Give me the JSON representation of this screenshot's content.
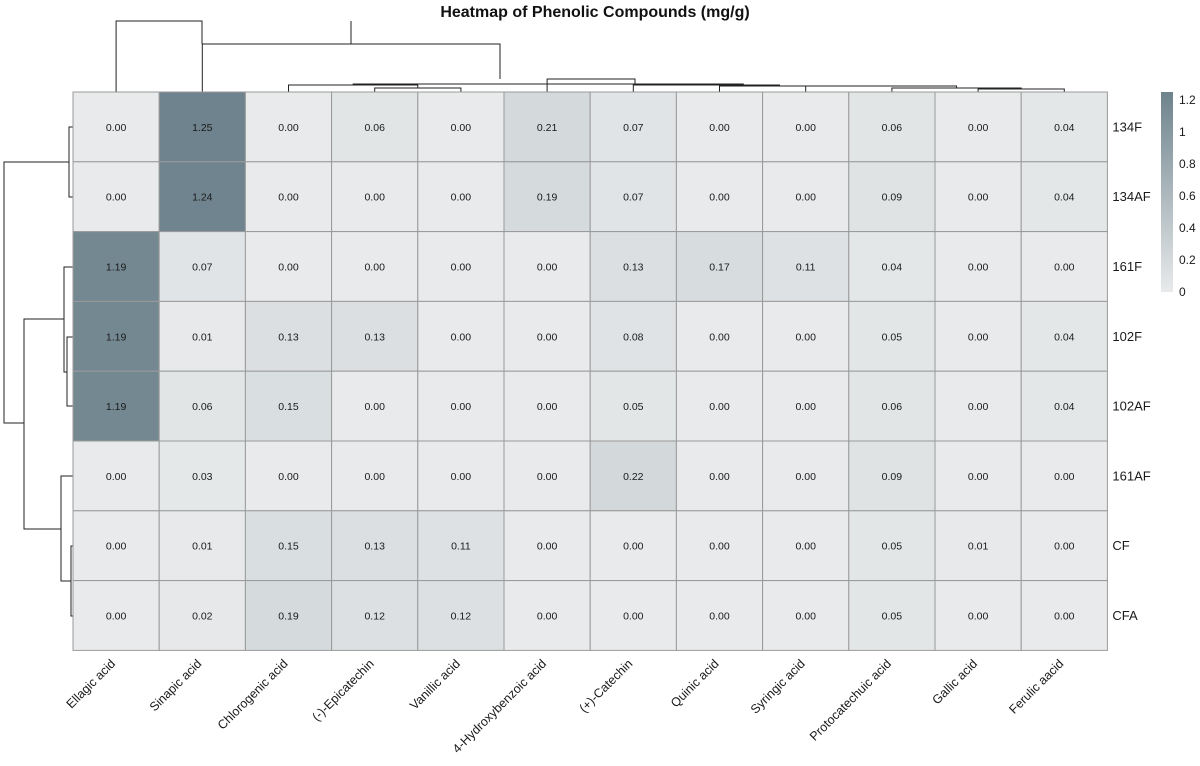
{
  "chart_data": {
    "type": "heatmap",
    "title": "Heatmap of Phenolic Compounds (mg/g)",
    "columns": [
      "Ellagic acid",
      "Sinapic acid",
      "Chlorogenic acid",
      "(-)-Epicatechin",
      "Vanillic acid",
      "4-Hydroxybenzoic acid",
      "(+)-Catechin",
      "Quinic acid",
      "Syringic acid",
      "Protocatechuic acid",
      "Gallic acid",
      "Ferulic aacid"
    ],
    "rows": [
      "134F",
      "134AF",
      "161F",
      "102F",
      "102AF",
      "161AF",
      "CF",
      "CFA"
    ],
    "values": [
      [
        0.0,
        1.25,
        0.0,
        0.06,
        0.0,
        0.21,
        0.07,
        0.0,
        0.0,
        0.06,
        0.0,
        0.04
      ],
      [
        0.0,
        1.24,
        0.0,
        0.0,
        0.0,
        0.19,
        0.07,
        0.0,
        0.0,
        0.09,
        0.0,
        0.04
      ],
      [
        1.19,
        0.07,
        0.0,
        0.0,
        0.0,
        0.0,
        0.13,
        0.17,
        0.11,
        0.04,
        0.0,
        0.0
      ],
      [
        1.19,
        0.01,
        0.13,
        0.13,
        0.0,
        0.0,
        0.08,
        0.0,
        0.0,
        0.05,
        0.0,
        0.04
      ],
      [
        1.19,
        0.06,
        0.15,
        0.0,
        0.0,
        0.0,
        0.05,
        0.0,
        0.0,
        0.06,
        0.0,
        0.04
      ],
      [
        0.0,
        0.03,
        0.0,
        0.0,
        0.0,
        0.0,
        0.22,
        0.0,
        0.0,
        0.09,
        0.0,
        0.0
      ],
      [
        0.0,
        0.01,
        0.15,
        0.13,
        0.11,
        0.0,
        0.0,
        0.0,
        0.0,
        0.05,
        0.01,
        0.0
      ],
      [
        0.0,
        0.02,
        0.19,
        0.12,
        0.12,
        0.0,
        0.0,
        0.0,
        0.0,
        0.05,
        0.0,
        0.0
      ]
    ],
    "color_scale": {
      "min": 0,
      "max": 1.25,
      "low_color": "#e8eaeb",
      "high_color": "#6e838d"
    },
    "legend_ticks": [
      "1.2",
      "1",
      "0.8",
      "0.6",
      "0.4",
      "0.2",
      "0"
    ],
    "legend_tick_values": [
      1.2,
      1.0,
      0.8,
      0.6,
      0.4,
      0.2,
      0
    ],
    "legend_position": "right",
    "row_dendrogram": true,
    "column_dendrogram": true
  }
}
